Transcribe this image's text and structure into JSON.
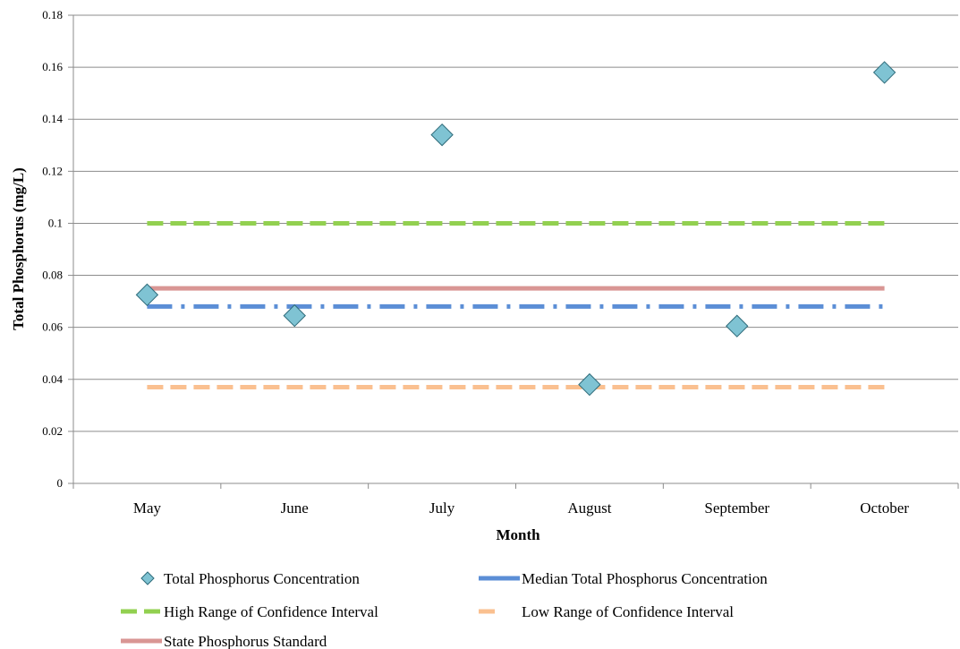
{
  "chart_data": {
    "type": "line",
    "xlabel": "Month",
    "ylabel": "Total Phosphorus (mg/L)",
    "categories": [
      "May",
      "June",
      "July",
      "August",
      "September",
      "October"
    ],
    "ylim": [
      0,
      0.18
    ],
    "yticks": [
      0,
      0.02,
      0.04,
      0.06,
      0.08,
      0.1,
      0.12,
      0.14,
      0.16,
      0.18
    ],
    "ytick_labels": [
      "0",
      "0.02",
      "0.04",
      "0.06",
      "0.08",
      "0.1",
      "0.12",
      "0.14",
      "0.16",
      "0.18"
    ],
    "grid": "horizontal",
    "legend_position": "bottom",
    "series": [
      {
        "name": "Total Phosphorus Concentration",
        "style": "markers",
        "marker": "diamond",
        "color": "#7fc3d3",
        "values": [
          0.0725,
          0.0645,
          0.134,
          0.038,
          0.0605,
          0.158
        ]
      },
      {
        "name": "Median Total Phosphorus Concentration",
        "style": "dash-dot",
        "color": "#5b8ed6",
        "values": [
          0.068,
          0.068,
          0.068,
          0.068,
          0.068,
          0.068
        ]
      },
      {
        "name": "High Range of Confidence Interval",
        "style": "dashed",
        "color": "#92d050",
        "values": [
          0.1,
          0.1,
          0.1,
          0.1,
          0.1,
          0.1
        ]
      },
      {
        "name": "Low Range of Confidence Interval",
        "style": "dashed",
        "color": "#fac090",
        "values": [
          0.037,
          0.037,
          0.037,
          0.037,
          0.037,
          0.037
        ]
      },
      {
        "name": "State Phosphorus Standard",
        "style": "solid",
        "color": "#d99694",
        "values": [
          0.075,
          0.075,
          0.075,
          0.075,
          0.075,
          0.075
        ]
      }
    ]
  }
}
